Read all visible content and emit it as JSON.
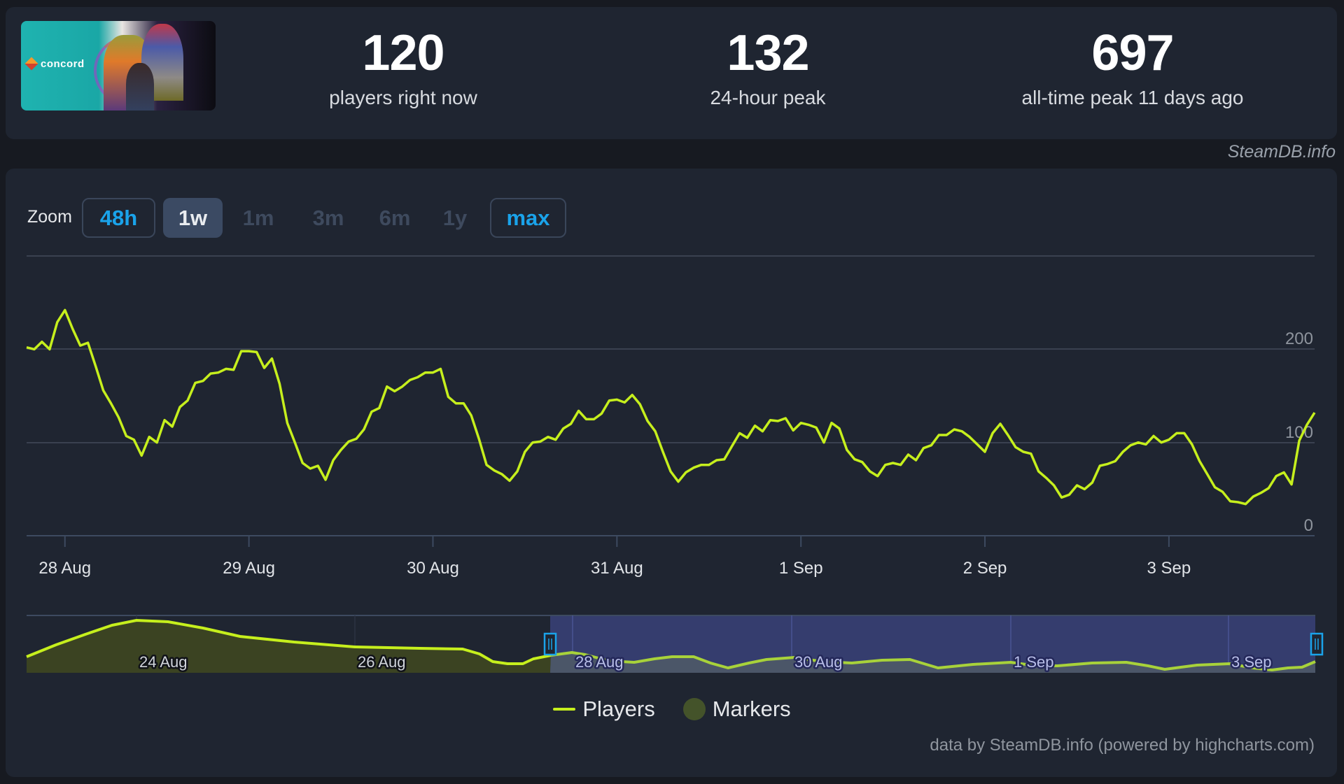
{
  "header": {
    "game_thumbnail": {
      "logo_text": "concord",
      "alt": "Concord"
    },
    "stats": [
      {
        "value": "120",
        "label": "players right now"
      },
      {
        "value": "132",
        "label": "24-hour peak"
      },
      {
        "value": "697",
        "label": "all-time peak 11 days ago"
      }
    ],
    "credit": "SteamDB.info"
  },
  "zoom": {
    "label": "Zoom",
    "buttons": [
      {
        "label": "48h",
        "state": "enabled"
      },
      {
        "label": "1w",
        "state": "selected"
      },
      {
        "label": "1m",
        "state": "disabled"
      },
      {
        "label": "3m",
        "state": "disabled"
      },
      {
        "label": "6m",
        "state": "disabled"
      },
      {
        "label": "1y",
        "state": "disabled"
      },
      {
        "label": "max",
        "state": "enabled"
      }
    ]
  },
  "legend": {
    "players": "Players",
    "markers": "Markers"
  },
  "credits": "data by SteamDB.info (powered by highcharts.com)",
  "colors": {
    "series": "#c6ef1d",
    "accent_blue": "#1aa3ea",
    "navigator_mask": "#353d6e",
    "marker": "#44532a",
    "panel": "#1f2531",
    "background": "#171a21"
  },
  "chart_data": {
    "type": "line",
    "title": "",
    "xlabel": "",
    "ylabel": "",
    "series": [
      {
        "name": "Players",
        "start": "27 Aug 19:00",
        "interval": "1h",
        "values": [
          202,
          200,
          208,
          200,
          229,
          242,
          222,
          204,
          207,
          182,
          156,
          142,
          127,
          107,
          103,
          86,
          106,
          100,
          124,
          117,
          138,
          145,
          164,
          166,
          174,
          175,
          179,
          178,
          198,
          198,
          197,
          180,
          190,
          163,
          121,
          100,
          78,
          72,
          75,
          60,
          81,
          92,
          101,
          104,
          114,
          133,
          137,
          160,
          155,
          160,
          167,
          170,
          175,
          175,
          179,
          149,
          142,
          142,
          129,
          104,
          76,
          70,
          66,
          59,
          69,
          90,
          100,
          101,
          106,
          103,
          115,
          120,
          134,
          125,
          125,
          131,
          145,
          146,
          143,
          151,
          141,
          123,
          112,
          90,
          69,
          58,
          68,
          73,
          76,
          76,
          81,
          82,
          96,
          110,
          105,
          118,
          112,
          124,
          123,
          126,
          113,
          121,
          119,
          116,
          100,
          121,
          115,
          92,
          82,
          79,
          69,
          64,
          76,
          78,
          76,
          87,
          81,
          94,
          97,
          108,
          108,
          114,
          112,
          106,
          98,
          90,
          110,
          120,
          108,
          95,
          90,
          88,
          69,
          62,
          54,
          41,
          44,
          54,
          50,
          57,
          75,
          77,
          80,
          90,
          97,
          100,
          98,
          107,
          100,
          103,
          110,
          110,
          98,
          80,
          66,
          52,
          47,
          37,
          36,
          34,
          42,
          46,
          51,
          64,
          68,
          55,
          102,
          119,
          132
        ]
      },
      {
        "name": "Markers",
        "values": []
      }
    ],
    "x_ticks": [
      "28 Aug",
      "29 Aug",
      "30 Aug",
      "31 Aug",
      "1 Sep",
      "2 Sep",
      "3 Sep"
    ],
    "y_ticks": [
      0,
      100,
      200
    ],
    "ylim": [
      0,
      300
    ],
    "grid": true,
    "legend_position": "bottom-center",
    "navigator": {
      "ticks": [
        "24 Aug",
        "26 Aug",
        "28 Aug",
        "30 Aug",
        "1 Sep",
        "3 Sep"
      ],
      "selected_range": [
        "27 Aug 19:00",
        "3 Sep 19:00"
      ]
    }
  }
}
